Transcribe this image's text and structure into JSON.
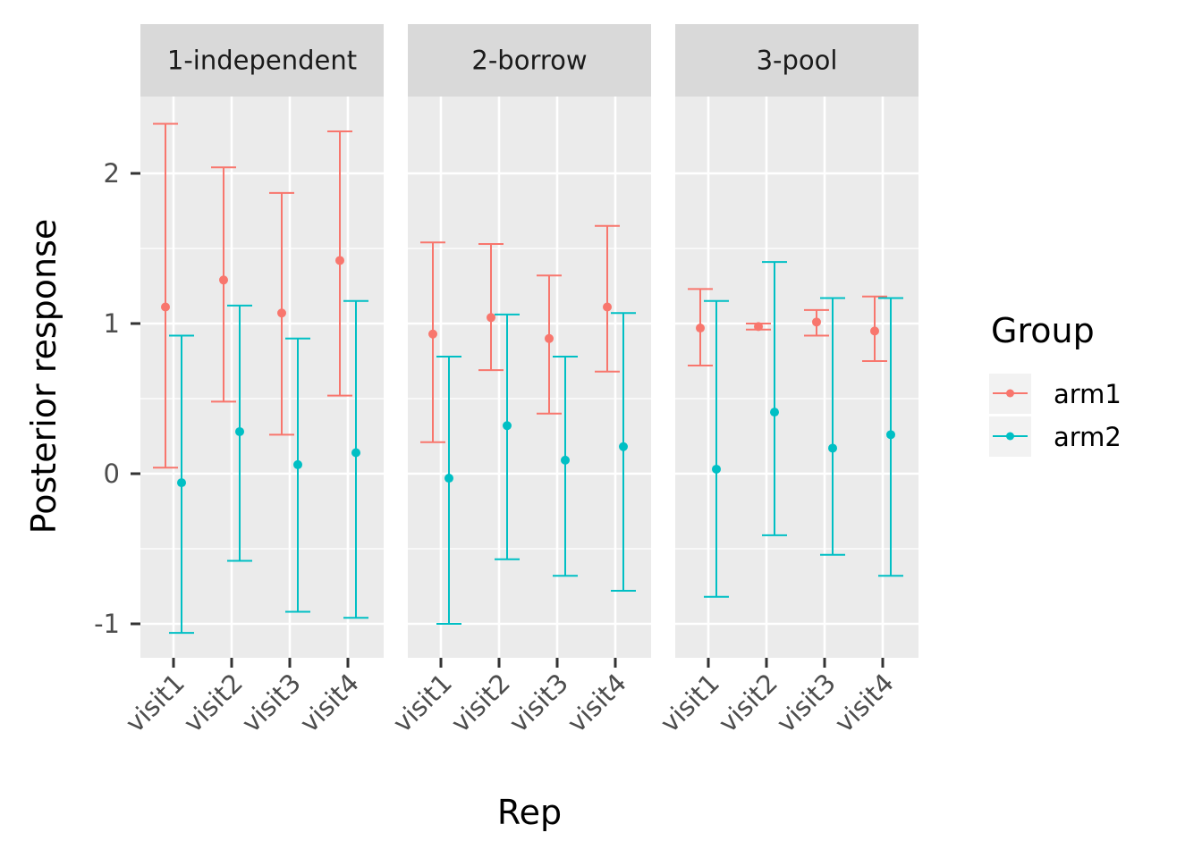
{
  "chart_data": {
    "type": "errorbar",
    "facets": [
      "1-independent",
      "2-borrow",
      "3-pool"
    ],
    "categories": [
      "visit1",
      "visit2",
      "visit3",
      "visit4"
    ],
    "xlabel": "Rep",
    "ylabel": "Posterior response",
    "ylim": [
      -1.2,
      2.5
    ],
    "yticks": [
      -1,
      0,
      1,
      2
    ],
    "ytick_labels": [
      "-1",
      "0",
      "1",
      "2"
    ],
    "grid": true,
    "legend": {
      "title": "Group",
      "position": "right"
    },
    "series": [
      {
        "name": "arm1",
        "color": "#F8766D",
        "panels": [
          {
            "mean": [
              1.11,
              1.29,
              1.07,
              1.42
            ],
            "lower": [
              0.04,
              0.48,
              0.26,
              0.52
            ],
            "upper": [
              2.33,
              2.04,
              1.87,
              2.28
            ]
          },
          {
            "mean": [
              0.93,
              1.04,
              0.9,
              1.11
            ],
            "lower": [
              0.21,
              0.69,
              0.4,
              0.68
            ],
            "upper": [
              1.54,
              1.53,
              1.32,
              1.65
            ]
          },
          {
            "mean": [
              0.97,
              0.98,
              1.01,
              0.95
            ],
            "lower": [
              0.72,
              0.96,
              0.92,
              0.75
            ],
            "upper": [
              1.23,
              1.0,
              1.09,
              1.18
            ]
          }
        ]
      },
      {
        "name": "arm2",
        "color": "#00BFC4",
        "panels": [
          {
            "mean": [
              -0.06,
              0.28,
              0.06,
              0.14
            ],
            "lower": [
              -1.06,
              -0.58,
              -0.92,
              -0.96
            ],
            "upper": [
              0.92,
              1.12,
              0.9,
              1.15
            ]
          },
          {
            "mean": [
              -0.03,
              0.32,
              0.09,
              0.18
            ],
            "lower": [
              -1.0,
              -0.57,
              -0.68,
              -0.78
            ],
            "upper": [
              0.78,
              1.06,
              0.78,
              1.07
            ]
          },
          {
            "mean": [
              0.03,
              0.41,
              0.17,
              0.26
            ],
            "lower": [
              -0.82,
              -0.41,
              -0.54,
              -0.68
            ],
            "upper": [
              1.15,
              1.41,
              1.17,
              1.17
            ]
          }
        ]
      }
    ]
  }
}
